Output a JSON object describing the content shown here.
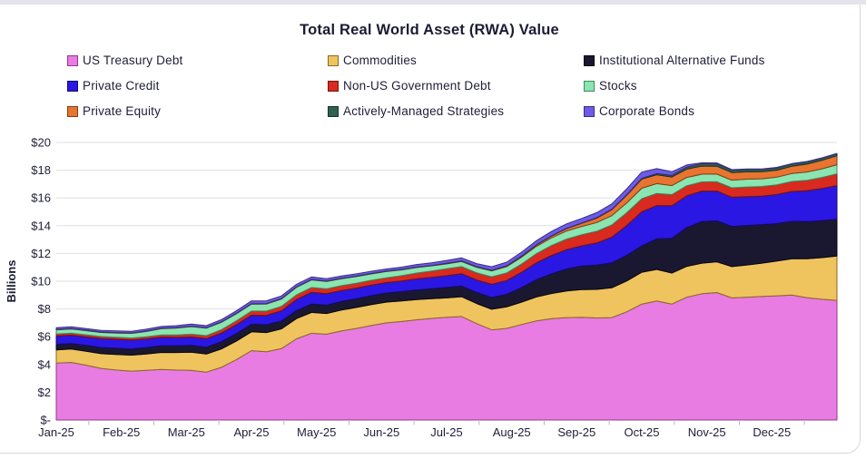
{
  "page": {
    "top_strip_color": "#E4E4EB"
  },
  "card": {
    "background": "#FFFFFF",
    "border_color": "#D6D6DF"
  },
  "chart": {
    "title_color": "#1B1B33",
    "text_color": "#1E1E38",
    "grid_color": "#DFDFE7",
    "axis_line_color": "#C9C9D3",
    "tick_color": "#B9B9C6"
  },
  "chart_data": {
    "type": "area",
    "stacked": true,
    "title": "Total Real World Asset (RWA) Value",
    "ylabel": "Billions",
    "unit": "USD billions",
    "ylim": [
      0,
      20
    ],
    "y_tick_step": 2,
    "y_tick_labels": [
      "$-",
      "$2",
      "$4",
      "$6",
      "$8",
      "$10",
      "$12",
      "$14",
      "$16",
      "$18",
      "$20"
    ],
    "grid": true,
    "legend_position": "top",
    "x_unit": "weekly values, Jan-2025 through end of Dec-2025",
    "x_month_labels": [
      "Jan-25",
      "Feb-25",
      "Mar-25",
      "Apr-25",
      "May-25",
      "Jun-25",
      "Jul-25",
      "Aug-25",
      "Sep-25",
      "Oct-25",
      "Nov-25",
      "Dec-25"
    ],
    "series": [
      {
        "name": "US Treasury Debt",
        "color": "#E87CE3",
        "stroke": "#8E3A88",
        "values": [
          4.1,
          4.15,
          3.95,
          3.72,
          3.6,
          3.52,
          3.58,
          3.65,
          3.6,
          3.58,
          3.45,
          3.8,
          4.35,
          5.0,
          4.92,
          5.15,
          5.85,
          6.25,
          6.18,
          6.42,
          6.6,
          6.82,
          7.0,
          7.1,
          7.22,
          7.32,
          7.4,
          7.46,
          6.95,
          6.5,
          6.6,
          6.88,
          7.15,
          7.3,
          7.38,
          7.4,
          7.35,
          7.38,
          7.8,
          8.35,
          8.58,
          8.35,
          8.85,
          9.1,
          9.18,
          8.8,
          8.85,
          8.9,
          8.95,
          9.0,
          8.82,
          8.7,
          8.62
        ]
      },
      {
        "name": "Commodities",
        "color": "#EFC45F",
        "stroke": "#8A6A1F",
        "values": [
          0.95,
          0.96,
          1.0,
          1.06,
          1.12,
          1.15,
          1.18,
          1.22,
          1.26,
          1.3,
          1.3,
          1.32,
          1.34,
          1.35,
          1.38,
          1.42,
          1.46,
          1.5,
          1.49,
          1.5,
          1.51,
          1.5,
          1.5,
          1.48,
          1.45,
          1.42,
          1.4,
          1.42,
          1.44,
          1.48,
          1.55,
          1.62,
          1.72,
          1.82,
          1.92,
          2.0,
          2.06,
          2.14,
          2.22,
          2.3,
          2.27,
          2.24,
          2.22,
          2.2,
          2.22,
          2.25,
          2.32,
          2.4,
          2.5,
          2.62,
          2.8,
          3.0,
          3.2
        ]
      },
      {
        "name": "Institutional Alternative Funds",
        "color": "#1A1830",
        "stroke": "#06050F",
        "values": [
          0.4,
          0.4,
          0.42,
          0.44,
          0.45,
          0.45,
          0.46,
          0.48,
          0.49,
          0.5,
          0.5,
          0.52,
          0.54,
          0.55,
          0.56,
          0.57,
          0.58,
          0.6,
          0.61,
          0.62,
          0.63,
          0.64,
          0.65,
          0.67,
          0.7,
          0.72,
          0.75,
          0.78,
          0.8,
          0.85,
          0.9,
          1.05,
          1.25,
          1.42,
          1.58,
          1.7,
          1.75,
          1.8,
          1.85,
          1.9,
          2.2,
          2.5,
          2.8,
          3.0,
          2.95,
          2.9,
          2.85,
          2.78,
          2.7,
          2.7,
          2.68,
          2.66,
          2.65
        ]
      },
      {
        "name": "Private Credit",
        "color": "#2B17E3",
        "stroke": "#150A6E",
        "values": [
          0.6,
          0.6,
          0.62,
          0.64,
          0.65,
          0.64,
          0.62,
          0.61,
          0.6,
          0.6,
          0.61,
          0.62,
          0.64,
          0.65,
          0.68,
          0.73,
          0.79,
          0.85,
          0.82,
          0.79,
          0.77,
          0.76,
          0.75,
          0.77,
          0.8,
          0.82,
          0.85,
          0.88,
          0.9,
          0.95,
          1.0,
          1.1,
          1.22,
          1.32,
          1.4,
          1.45,
          1.6,
          1.85,
          2.15,
          2.45,
          2.4,
          2.35,
          2.28,
          2.2,
          2.15,
          2.1,
          2.08,
          2.05,
          2.1,
          2.15,
          2.22,
          2.32,
          2.42
        ]
      },
      {
        "name": "Non-US Government Debt",
        "color": "#D92A1F",
        "stroke": "#6E1510",
        "values": [
          0.15,
          0.15,
          0.15,
          0.15,
          0.15,
          0.15,
          0.16,
          0.17,
          0.18,
          0.2,
          0.22,
          0.25,
          0.28,
          0.3,
          0.31,
          0.32,
          0.34,
          0.35,
          0.35,
          0.35,
          0.35,
          0.35,
          0.35,
          0.38,
          0.42,
          0.46,
          0.5,
          0.51,
          0.52,
          0.54,
          0.55,
          0.6,
          0.66,
          0.72,
          0.76,
          0.8,
          0.84,
          0.88,
          0.92,
          0.95,
          0.88,
          0.8,
          0.73,
          0.66,
          0.67,
          0.68,
          0.69,
          0.7,
          0.7,
          0.72,
          0.75,
          0.8,
          0.85
        ]
      },
      {
        "name": "Stocks",
        "color": "#8AE5B1",
        "stroke": "#3E8A60",
        "values": [
          0.3,
          0.3,
          0.3,
          0.3,
          0.3,
          0.33,
          0.38,
          0.45,
          0.5,
          0.55,
          0.54,
          0.53,
          0.51,
          0.5,
          0.51,
          0.53,
          0.54,
          0.55,
          0.53,
          0.5,
          0.48,
          0.46,
          0.45,
          0.42,
          0.4,
          0.37,
          0.35,
          0.37,
          0.39,
          0.42,
          0.45,
          0.49,
          0.52,
          0.55,
          0.58,
          0.6,
          0.63,
          0.67,
          0.71,
          0.75,
          0.7,
          0.65,
          0.6,
          0.55,
          0.55,
          0.55,
          0.56,
          0.55,
          0.55,
          0.57,
          0.6,
          0.62,
          0.65
        ]
      },
      {
        "name": "Private Equity",
        "color": "#E8742F",
        "stroke": "#7E3D14",
        "values": [
          0.02,
          0.02,
          0.02,
          0.02,
          0.02,
          0.02,
          0.02,
          0.02,
          0.02,
          0.02,
          0.02,
          0.02,
          0.02,
          0.02,
          0.02,
          0.02,
          0.02,
          0.02,
          0.02,
          0.02,
          0.02,
          0.02,
          0.02,
          0.02,
          0.02,
          0.02,
          0.03,
          0.03,
          0.03,
          0.04,
          0.05,
          0.07,
          0.1,
          0.14,
          0.18,
          0.22,
          0.32,
          0.43,
          0.55,
          0.66,
          0.64,
          0.62,
          0.6,
          0.59,
          0.57,
          0.55,
          0.53,
          0.51,
          0.5,
          0.53,
          0.57,
          0.61,
          0.65
        ]
      },
      {
        "name": "Actively-Managed Strategies",
        "color": "#2F6150",
        "stroke": "#16302A",
        "values": [
          0.01,
          0.01,
          0.01,
          0.01,
          0.01,
          0.01,
          0.01,
          0.01,
          0.01,
          0.01,
          0.01,
          0.01,
          0.01,
          0.01,
          0.01,
          0.01,
          0.01,
          0.01,
          0.01,
          0.01,
          0.01,
          0.01,
          0.01,
          0.01,
          0.01,
          0.01,
          0.02,
          0.02,
          0.02,
          0.02,
          0.02,
          0.02,
          0.02,
          0.02,
          0.02,
          0.02,
          0.03,
          0.03,
          0.04,
          0.05,
          0.09,
          0.12,
          0.15,
          0.18,
          0.18,
          0.17,
          0.17,
          0.16,
          0.16,
          0.16,
          0.16,
          0.15,
          0.15
        ]
      },
      {
        "name": "Corporate Bonds",
        "color": "#6D5BE8",
        "stroke": "#372E7E",
        "values": [
          0.12,
          0.12,
          0.12,
          0.12,
          0.12,
          0.12,
          0.13,
          0.13,
          0.14,
          0.15,
          0.15,
          0.16,
          0.18,
          0.2,
          0.2,
          0.19,
          0.19,
          0.18,
          0.17,
          0.17,
          0.16,
          0.16,
          0.15,
          0.16,
          0.18,
          0.19,
          0.2,
          0.21,
          0.22,
          0.24,
          0.25,
          0.27,
          0.29,
          0.31,
          0.32,
          0.33,
          0.36,
          0.39,
          0.42,
          0.45,
          0.35,
          0.25,
          0.15,
          0.05,
          0.05,
          0.04,
          0.04,
          0.04,
          0.04,
          0.03,
          0.03,
          0.03,
          0.02
        ]
      }
    ]
  }
}
